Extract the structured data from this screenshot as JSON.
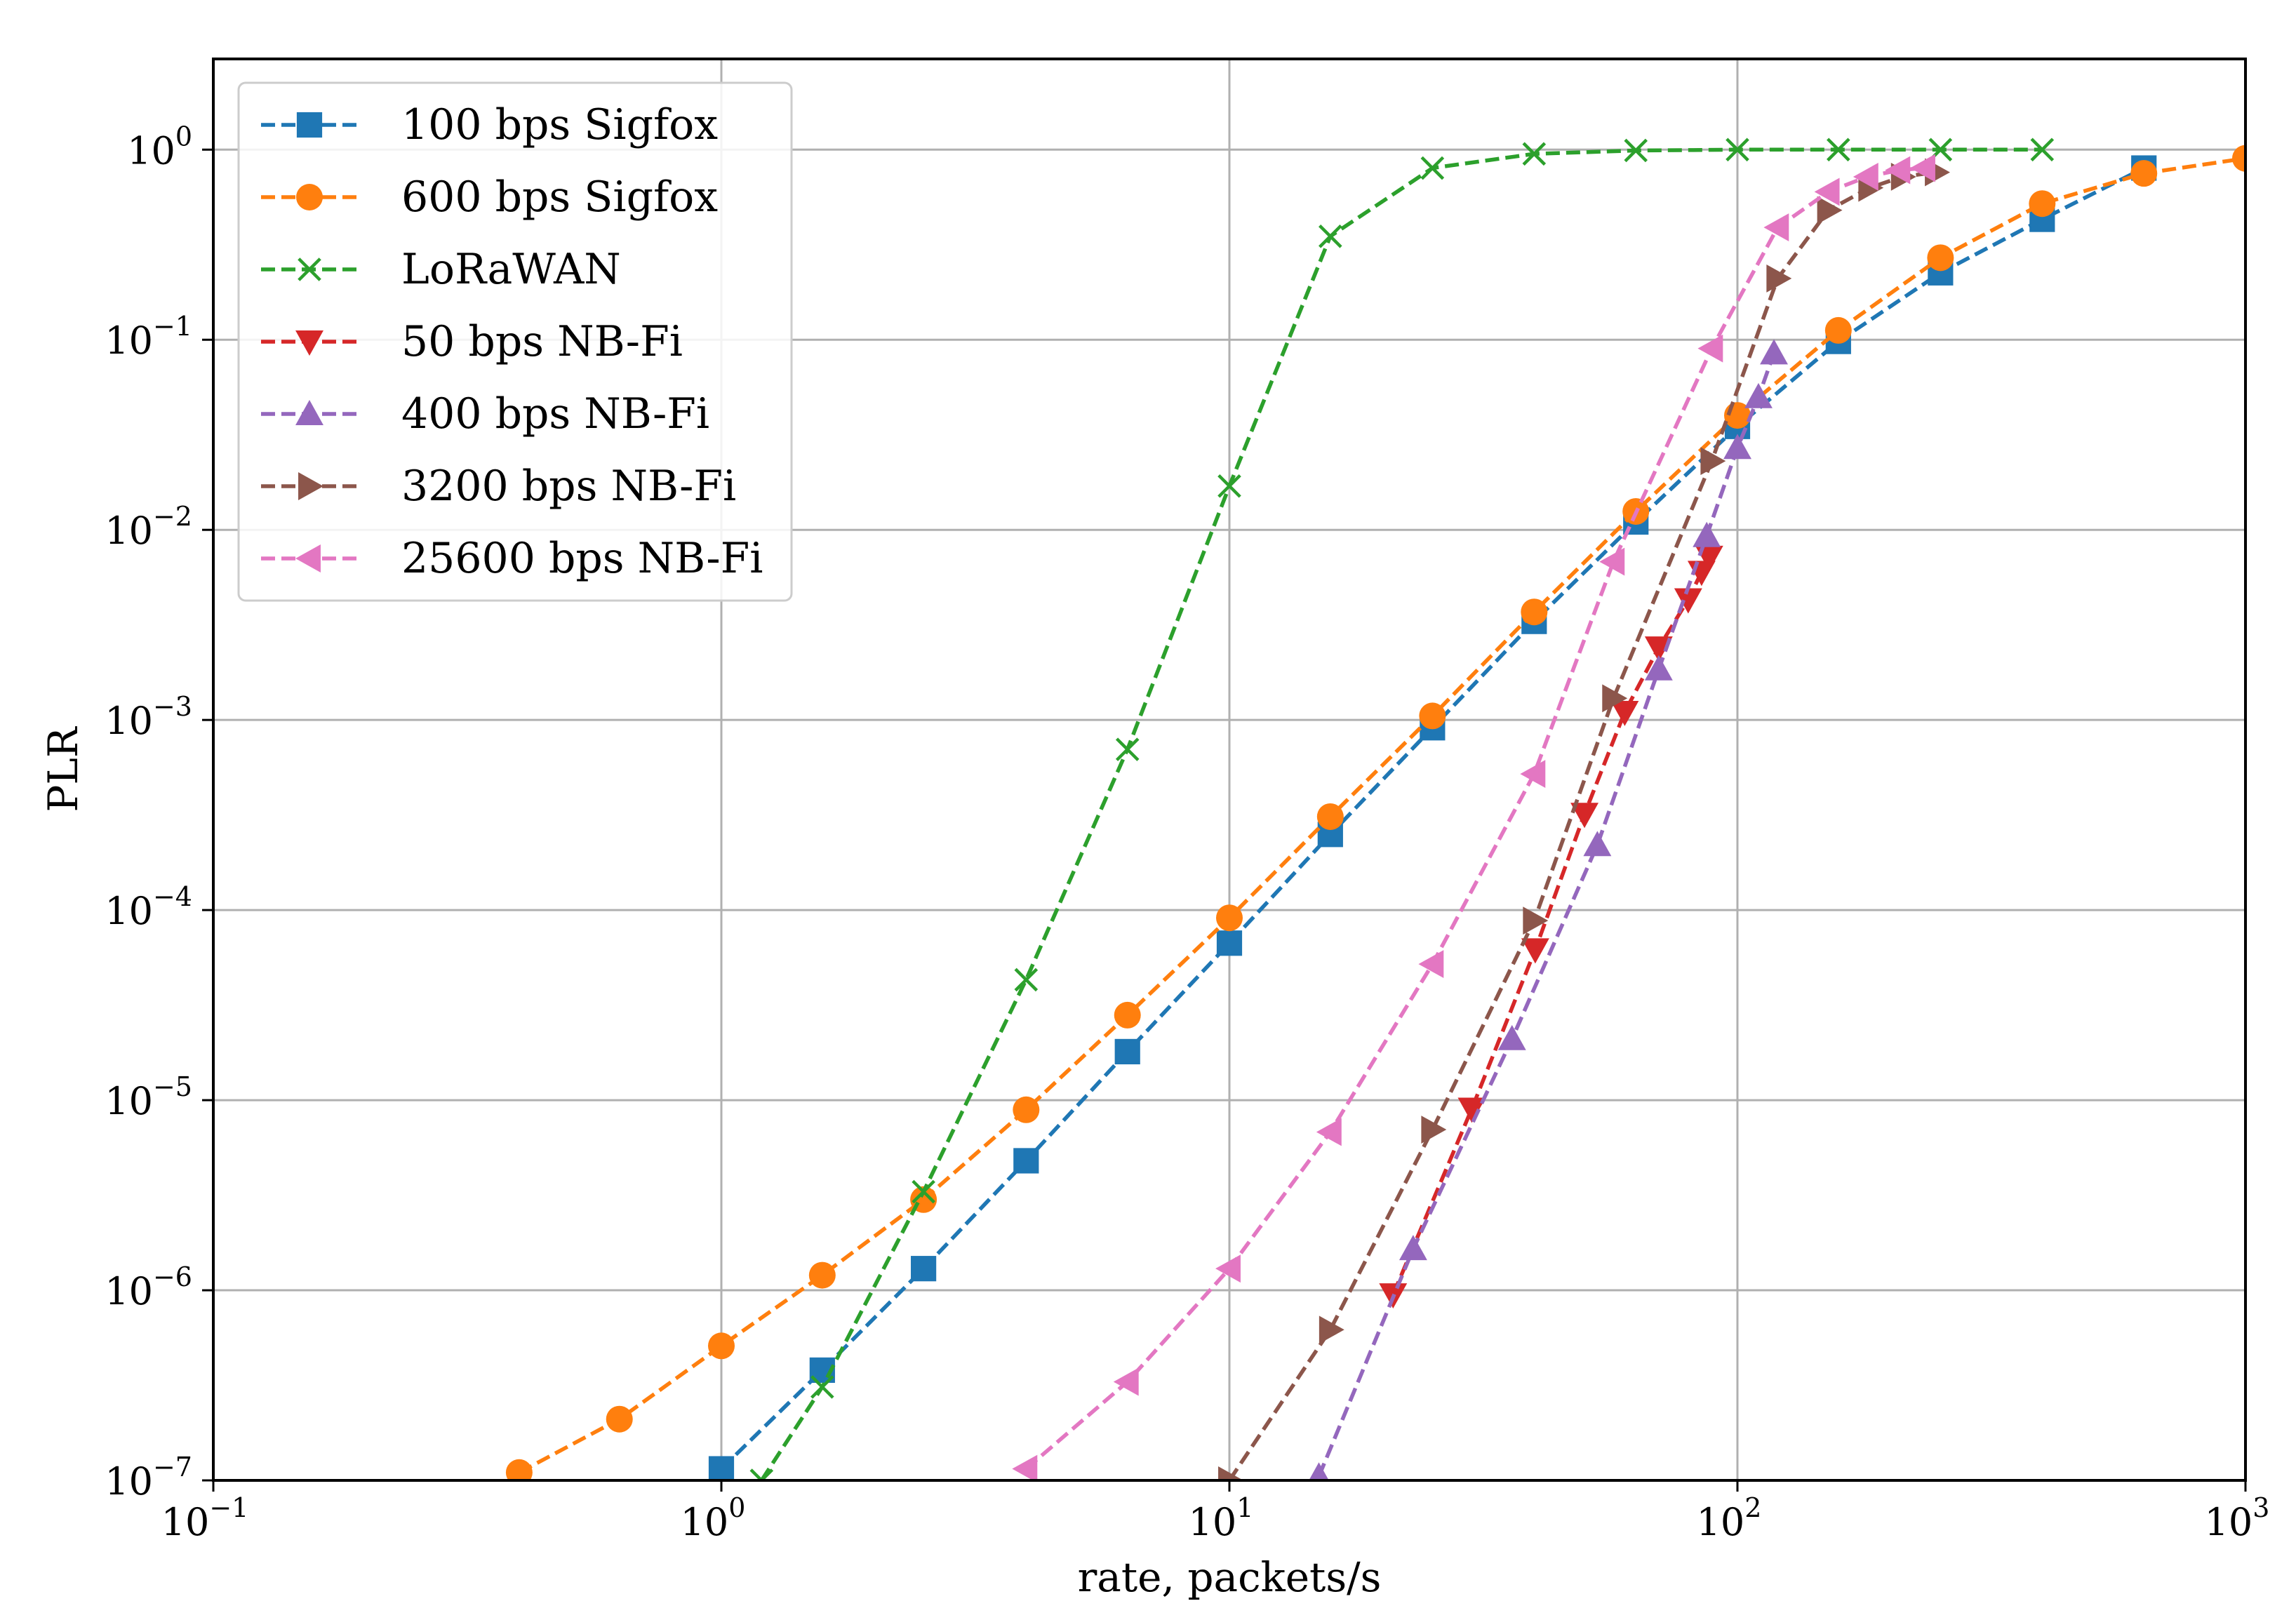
{
  "chart_data": {
    "type": "line",
    "title": "",
    "xlabel": "rate, packets/s",
    "ylabel": "PLR",
    "xscale": "log",
    "yscale": "log",
    "xlim": [
      0.1,
      1000
    ],
    "ylim": [
      1e-07,
      3
    ],
    "grid": true,
    "legend_position": "top-left",
    "x_ticks": [
      {
        "value": 0.1,
        "base": "10",
        "exp": "−1"
      },
      {
        "value": 1,
        "base": "10",
        "exp": "0"
      },
      {
        "value": 10,
        "base": "10",
        "exp": "1"
      },
      {
        "value": 100,
        "base": "10",
        "exp": "2"
      },
      {
        "value": 1000,
        "base": "10",
        "exp": "3"
      }
    ],
    "y_ticks": [
      {
        "value": 1e-07,
        "base": "10",
        "exp": "−7"
      },
      {
        "value": 1e-06,
        "base": "10",
        "exp": "−6"
      },
      {
        "value": 1e-05,
        "base": "10",
        "exp": "−5"
      },
      {
        "value": 0.0001,
        "base": "10",
        "exp": "−4"
      },
      {
        "value": 0.001,
        "base": "10",
        "exp": "−3"
      },
      {
        "value": 0.01,
        "base": "10",
        "exp": "−2"
      },
      {
        "value": 0.1,
        "base": "10",
        "exp": "−1"
      },
      {
        "value": 1,
        "base": "10",
        "exp": "0"
      }
    ],
    "series": [
      {
        "name": "100 bps Sigfox",
        "color": "#1f77b4",
        "marker": "square",
        "x": [
          1.0,
          1.58,
          2.5,
          3.98,
          6.3,
          10.0,
          15.8,
          25.1,
          39.8,
          63.1,
          100,
          158,
          251,
          398,
          631
        ],
        "y": [
          1.15e-07,
          3.8e-07,
          1.3e-06,
          4.8e-06,
          1.8e-05,
          6.7e-05,
          0.00025,
          0.00091,
          0.0033,
          0.011,
          0.035,
          0.098,
          0.225,
          0.43,
          0.8
        ]
      },
      {
        "name": "600 bps Sigfox",
        "color": "#ff7f0e",
        "marker": "circle",
        "x": [
          0.4,
          0.63,
          1.0,
          1.58,
          2.5,
          3.98,
          6.3,
          10.0,
          15.8,
          25.1,
          39.8,
          63.1,
          100,
          158,
          251,
          398,
          631,
          1000
        ],
        "y": [
          1.1e-07,
          2.1e-07,
          5.1e-07,
          1.2e-06,
          3e-06,
          8.9e-06,
          2.8e-05,
          9.1e-05,
          0.00031,
          0.00105,
          0.0037,
          0.0125,
          0.04,
          0.112,
          0.27,
          0.52,
          0.75,
          0.9
        ]
      },
      {
        "name": "LoRaWAN",
        "color": "#2ca02c",
        "marker": "x",
        "x": [
          1.2,
          1.58,
          2.5,
          3.98,
          6.3,
          10.0,
          15.8,
          25.1,
          39.8,
          63.1,
          100,
          158,
          251,
          398
        ],
        "y": [
          1e-07,
          3.1e-07,
          3.3e-06,
          4.3e-05,
          0.0007,
          0.017,
          0.35,
          0.8,
          0.95,
          0.99,
          1.0,
          1.0,
          1.0,
          1.0
        ]
      },
      {
        "name": "50 bps NB-Fi",
        "color": "#d62728",
        "marker": "triangle-down",
        "x": [
          21,
          30,
          40,
          50,
          60,
          70,
          80,
          85,
          88
        ],
        "y": [
          9.5e-07,
          9e-06,
          6.2e-05,
          0.00032,
          0.0011,
          0.0024,
          0.0043,
          0.006,
          0.0072
        ]
      },
      {
        "name": "400 bps NB-Fi",
        "color": "#9467bd",
        "marker": "triangle-up",
        "x": [
          15,
          23,
          36,
          53,
          70,
          87,
          100,
          110,
          118
        ],
        "y": [
          1.05e-07,
          1.65e-06,
          2.1e-05,
          0.00022,
          0.00185,
          0.0093,
          0.027,
          0.05,
          0.085
        ]
      },
      {
        "name": "3200 bps NB-Fi",
        "color": "#8c564b",
        "marker": "triangle-right",
        "x": [
          10,
          15.8,
          25.1,
          39.8,
          57,
          89,
          120,
          151,
          182,
          211,
          246
        ],
        "y": [
          1e-07,
          6.2e-07,
          7e-06,
          8.8e-05,
          0.0013,
          0.023,
          0.21,
          0.48,
          0.63,
          0.72,
          0.76
        ]
      },
      {
        "name": "25600 bps NB-Fi",
        "color": "#e377c2",
        "marker": "triangle-left",
        "x": [
          3.98,
          6.3,
          10.0,
          15.8,
          25.1,
          39.8,
          57,
          89,
          120,
          151,
          180,
          208,
          233
        ],
        "y": [
          1.15e-07,
          3.3e-07,
          1.3e-06,
          6.8e-06,
          5.2e-05,
          0.00052,
          0.0068,
          0.09,
          0.39,
          0.6,
          0.72,
          0.78,
          0.8
        ]
      }
    ]
  }
}
